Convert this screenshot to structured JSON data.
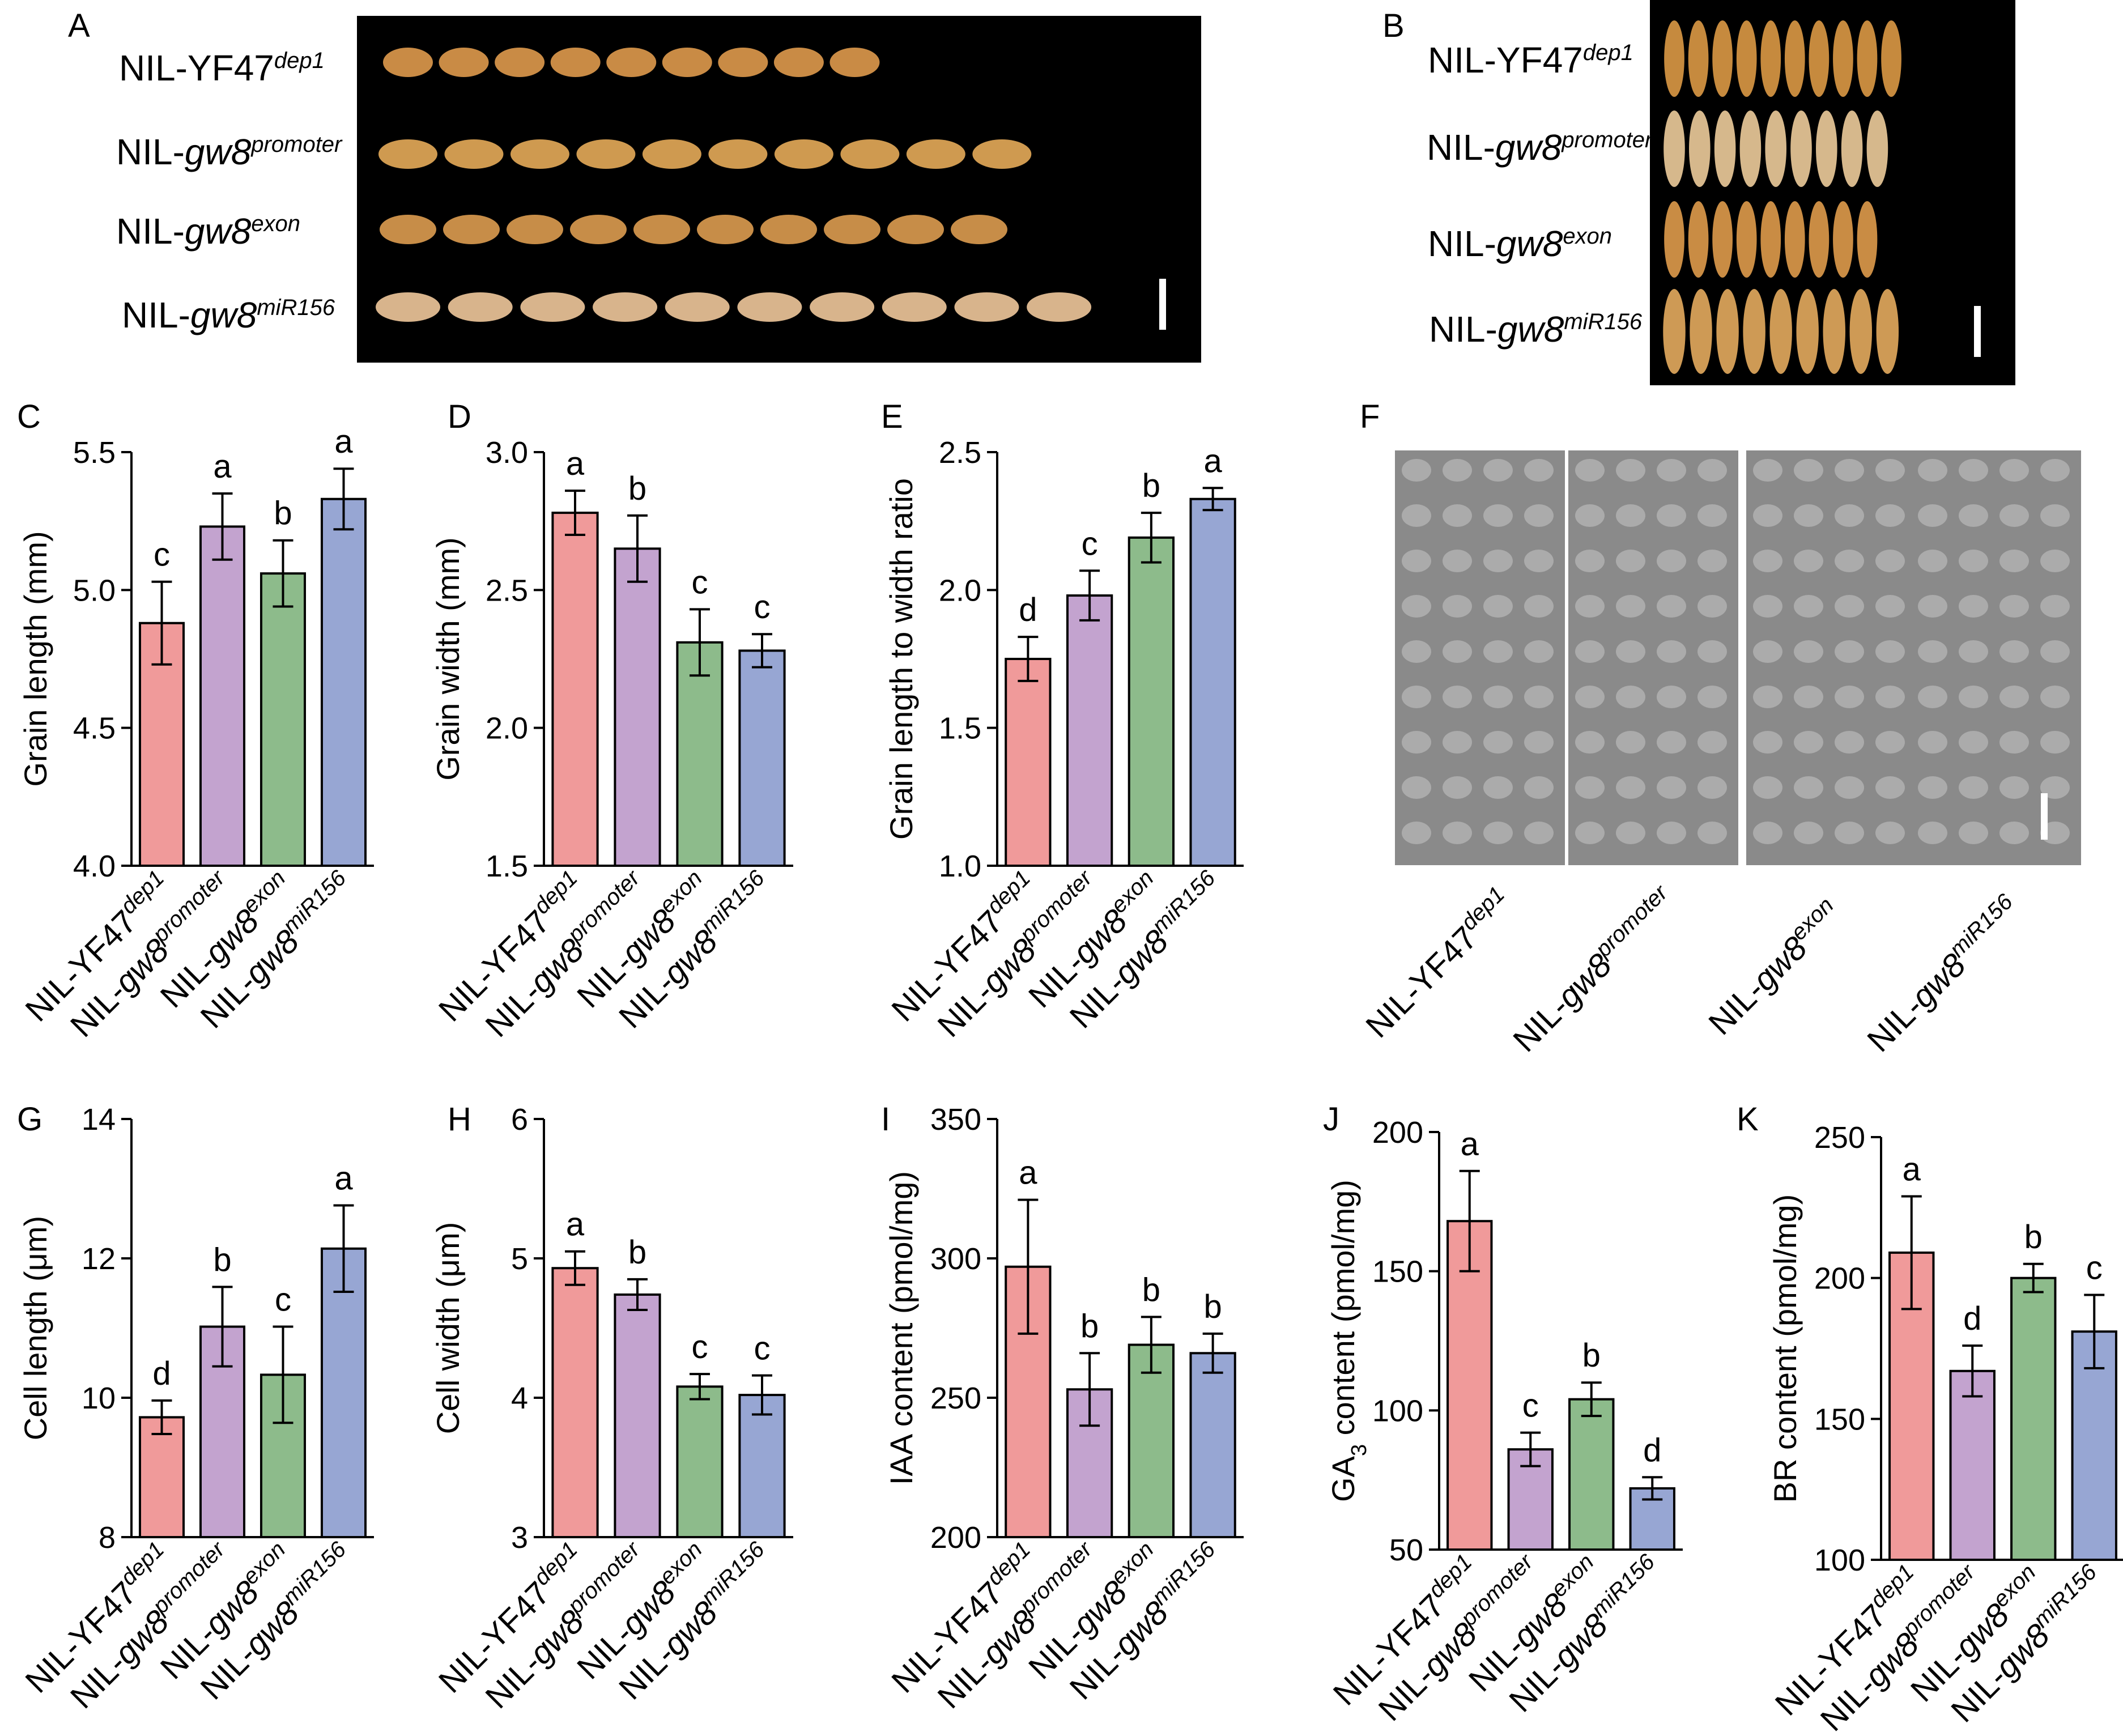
{
  "colors": {
    "c1": "#F09A9A",
    "c2": "#C3A3CF",
    "c3": "#8DBB8B",
    "c4": "#97A6D3",
    "photo_bg": "#000000",
    "grain": "#C98B45",
    "sem": "#8c8c8c"
  },
  "letters": [
    "A",
    "B",
    "C",
    "D",
    "E",
    "F",
    "G",
    "H",
    "I",
    "J",
    "K"
  ],
  "genotypes": [
    {
      "base": "NIL-YF47",
      "sup": "dep1",
      "italic": false
    },
    {
      "base": "NIL-",
      "ital": "gw8",
      "sup": "promoter",
      "italic": true
    },
    {
      "base": "NIL-",
      "ital": "gw8",
      "sup": "exon",
      "italic": true
    },
    {
      "base": "NIL-",
      "ital": "gw8",
      "sup": "miR156",
      "italic": true
    }
  ],
  "chart_data": [
    {
      "panel": "C",
      "type": "bar",
      "ylabel": "Grain length (mm)",
      "ylim": [
        4.0,
        5.5
      ],
      "ticks": [
        "4.0",
        "4.5",
        "5.0",
        "5.5"
      ],
      "tickvals": [
        4.0,
        4.5,
        5.0,
        5.5
      ],
      "values": [
        4.88,
        5.23,
        5.06,
        5.33
      ],
      "errors": [
        0.15,
        0.12,
        0.12,
        0.11
      ],
      "letters": [
        "c",
        "a",
        "b",
        "a"
      ]
    },
    {
      "panel": "D",
      "type": "bar",
      "ylabel": "Grain width (mm)",
      "ylim": [
        1.5,
        3.0
      ],
      "ticks": [
        "1.5",
        "2.0",
        "2.5",
        "3.0"
      ],
      "tickvals": [
        1.5,
        2.0,
        2.5,
        3.0
      ],
      "values": [
        2.78,
        2.65,
        2.31,
        2.28
      ],
      "errors": [
        0.08,
        0.12,
        0.12,
        0.06
      ],
      "letters": [
        "a",
        "b",
        "c",
        "c"
      ]
    },
    {
      "panel": "E",
      "type": "bar",
      "ylabel": "Grain length to width ratio",
      "ylim": [
        1.0,
        2.5
      ],
      "ticks": [
        "1.0",
        "1.5",
        "2.0",
        "2.5"
      ],
      "tickvals": [
        1.0,
        1.5,
        2.0,
        2.5
      ],
      "values": [
        1.75,
        1.98,
        2.19,
        2.33
      ],
      "errors": [
        0.08,
        0.09,
        0.09,
        0.04
      ],
      "letters": [
        "d",
        "c",
        "b",
        "a"
      ]
    },
    {
      "panel": "G",
      "type": "bar",
      "ylabel": "Cell length (μm)",
      "ylim": [
        8,
        14
      ],
      "ticks": [
        "8",
        "10",
        "12",
        "14"
      ],
      "tickvals": [
        8,
        10,
        12,
        14
      ],
      "values": [
        9.72,
        11.02,
        10.33,
        12.14
      ],
      "errors": [
        0.24,
        0.57,
        0.69,
        0.62
      ],
      "letters": [
        "d",
        "b",
        "c",
        "a"
      ]
    },
    {
      "panel": "H",
      "type": "bar",
      "ylabel": "Cell width (μm)",
      "ylim": [
        3,
        6
      ],
      "ticks": [
        "3",
        "4",
        "5",
        "6"
      ],
      "tickvals": [
        3,
        4,
        5,
        6
      ],
      "values": [
        4.93,
        4.74,
        4.08,
        4.02
      ],
      "errors": [
        0.12,
        0.11,
        0.09,
        0.14
      ],
      "letters": [
        "a",
        "b",
        "c",
        "c"
      ]
    },
    {
      "panel": "I",
      "type": "bar",
      "ylabel": "IAA content (pmol/mg)",
      "ylim": [
        200,
        350
      ],
      "ticks": [
        "200",
        "250",
        "300",
        "350"
      ],
      "tickvals": [
        200,
        250,
        300,
        350
      ],
      "values": [
        297,
        253,
        269,
        266
      ],
      "errors": [
        24,
        13,
        10,
        7
      ],
      "letters": [
        "a",
        "b",
        "b",
        "b"
      ]
    },
    {
      "panel": "J",
      "type": "bar",
      "ylabel": "GA3 content (pmol/mg)",
      "ylabel_parts": [
        "GA",
        "3",
        " content (pmol/mg)"
      ],
      "ylim": [
        50,
        200
      ],
      "ticks": [
        "50",
        "100",
        "150",
        "200"
      ],
      "tickvals": [
        50,
        100,
        150,
        200
      ],
      "values": [
        168,
        86,
        104,
        72
      ],
      "errors": [
        18,
        6,
        6,
        4
      ],
      "letters": [
        "a",
        "c",
        "b",
        "d"
      ]
    },
    {
      "panel": "K",
      "type": "bar",
      "ylabel": "BR content (pmol/mg)",
      "ylim": [
        100,
        250
      ],
      "ticks": [
        "100",
        "150",
        "200",
        "250"
      ],
      "tickvals": [
        100,
        150,
        200,
        250
      ],
      "values": [
        209,
        167,
        200,
        181
      ],
      "errors": [
        20,
        9,
        5,
        13
      ],
      "letters": [
        "a",
        "d",
        "b",
        "c"
      ]
    }
  ]
}
